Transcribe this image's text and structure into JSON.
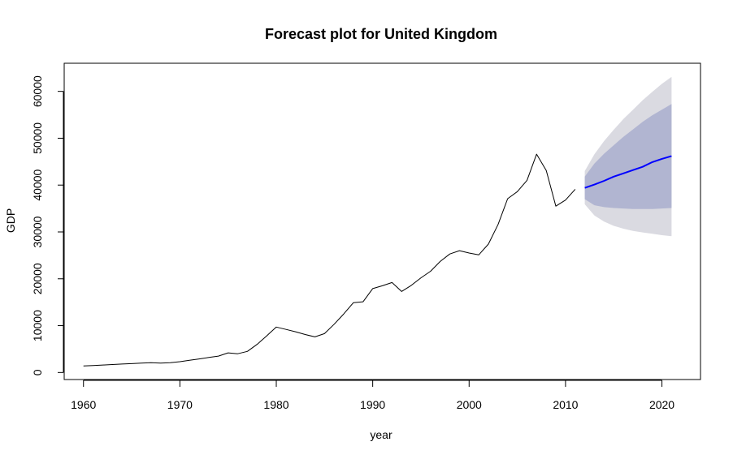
{
  "chart_data": {
    "type": "line",
    "title": "Forecast plot for United Kingdom",
    "xlabel": "year",
    "ylabel": "GDP",
    "xlim": [
      1958,
      2024
    ],
    "ylim": [
      -1500,
      66000
    ],
    "x_ticks": [
      1960,
      1970,
      1980,
      1990,
      2000,
      2010,
      2020
    ],
    "y_ticks": [
      0,
      10000,
      20000,
      30000,
      40000,
      50000,
      60000
    ],
    "grid": false,
    "legend": "none",
    "series": [
      {
        "role": "history",
        "color": "#000000",
        "x": [
          1960,
          1961,
          1962,
          1963,
          1964,
          1965,
          1966,
          1967,
          1968,
          1969,
          1970,
          1971,
          1972,
          1973,
          1974,
          1975,
          1976,
          1977,
          1978,
          1979,
          1980,
          1981,
          1982,
          1983,
          1984,
          1985,
          1986,
          1987,
          1988,
          1989,
          1990,
          1991,
          1992,
          1993,
          1994,
          1995,
          1996,
          1997,
          1998,
          1999,
          2000,
          2001,
          2002,
          2003,
          2004,
          2005,
          2006,
          2007,
          2008,
          2009,
          2010,
          2011
        ],
        "y": [
          1400,
          1500,
          1600,
          1700,
          1800,
          1900,
          2000,
          2100,
          2000,
          2100,
          2300,
          2600,
          2900,
          3200,
          3500,
          4200,
          4000,
          4500,
          6000,
          7800,
          9700,
          9200,
          8700,
          8100,
          7600,
          8300,
          10300,
          12500,
          14900,
          15100,
          17900,
          18500,
          19200,
          17300,
          18600,
          20200,
          21600,
          23700,
          25300,
          26000,
          25500,
          25100,
          27400,
          31600,
          37100,
          38600,
          41000,
          46600,
          43100,
          35500,
          36800,
          39100
        ]
      },
      {
        "role": "forecast-mean",
        "color": "#0000ff",
        "x": [
          2012,
          2013,
          2014,
          2015,
          2016,
          2017,
          2018,
          2019,
          2020,
          2021
        ],
        "y": [
          39400,
          40100,
          40900,
          41800,
          42500,
          43200,
          43900,
          44900,
          45600,
          46200
        ]
      }
    ],
    "intervals": [
      {
        "role": "outer-band",
        "color": "#dadae1",
        "x": [
          2012,
          2013,
          2014,
          2015,
          2016,
          2017,
          2018,
          2019,
          2020,
          2021
        ],
        "lower": [
          35900,
          33500,
          32200,
          31300,
          30700,
          30200,
          29900,
          29600,
          29300,
          29100
        ],
        "upper": [
          43000,
          46600,
          49400,
          51800,
          54100,
          56100,
          58100,
          59900,
          61600,
          63100
        ]
      },
      {
        "role": "inner-band",
        "color": "#b1b5d1",
        "x": [
          2012,
          2013,
          2014,
          2015,
          2016,
          2017,
          2018,
          2019,
          2020,
          2021
        ],
        "lower": [
          37000,
          35700,
          35300,
          35100,
          35000,
          34900,
          34900,
          34900,
          35000,
          35100
        ],
        "upper": [
          41800,
          44600,
          46700,
          48500,
          50300,
          51900,
          53500,
          54900,
          56100,
          57300
        ]
      }
    ]
  }
}
